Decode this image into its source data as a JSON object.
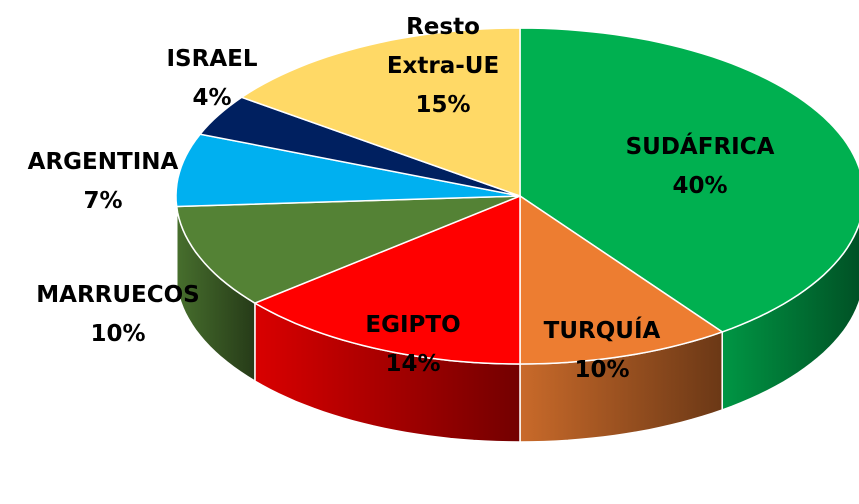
{
  "chart_data": {
    "type": "pie3d",
    "categories": [
      "SUDÁFRICA",
      "TURQUÍA",
      "EGIPTO",
      "MARRUECOS",
      "ARGENTINA",
      "ISRAEL",
      "Resto Extra-UE"
    ],
    "values": [
      40,
      10,
      14,
      10,
      7,
      4,
      15
    ],
    "value_labels": [
      "40%",
      "10%",
      "14%",
      "10%",
      "7%",
      "4%",
      "15%"
    ],
    "colors": [
      "#00b050",
      "#ed7d31",
      "#ff0000",
      "#548235",
      "#00b0f0",
      "#002060",
      "#ffd966"
    ]
  }
}
